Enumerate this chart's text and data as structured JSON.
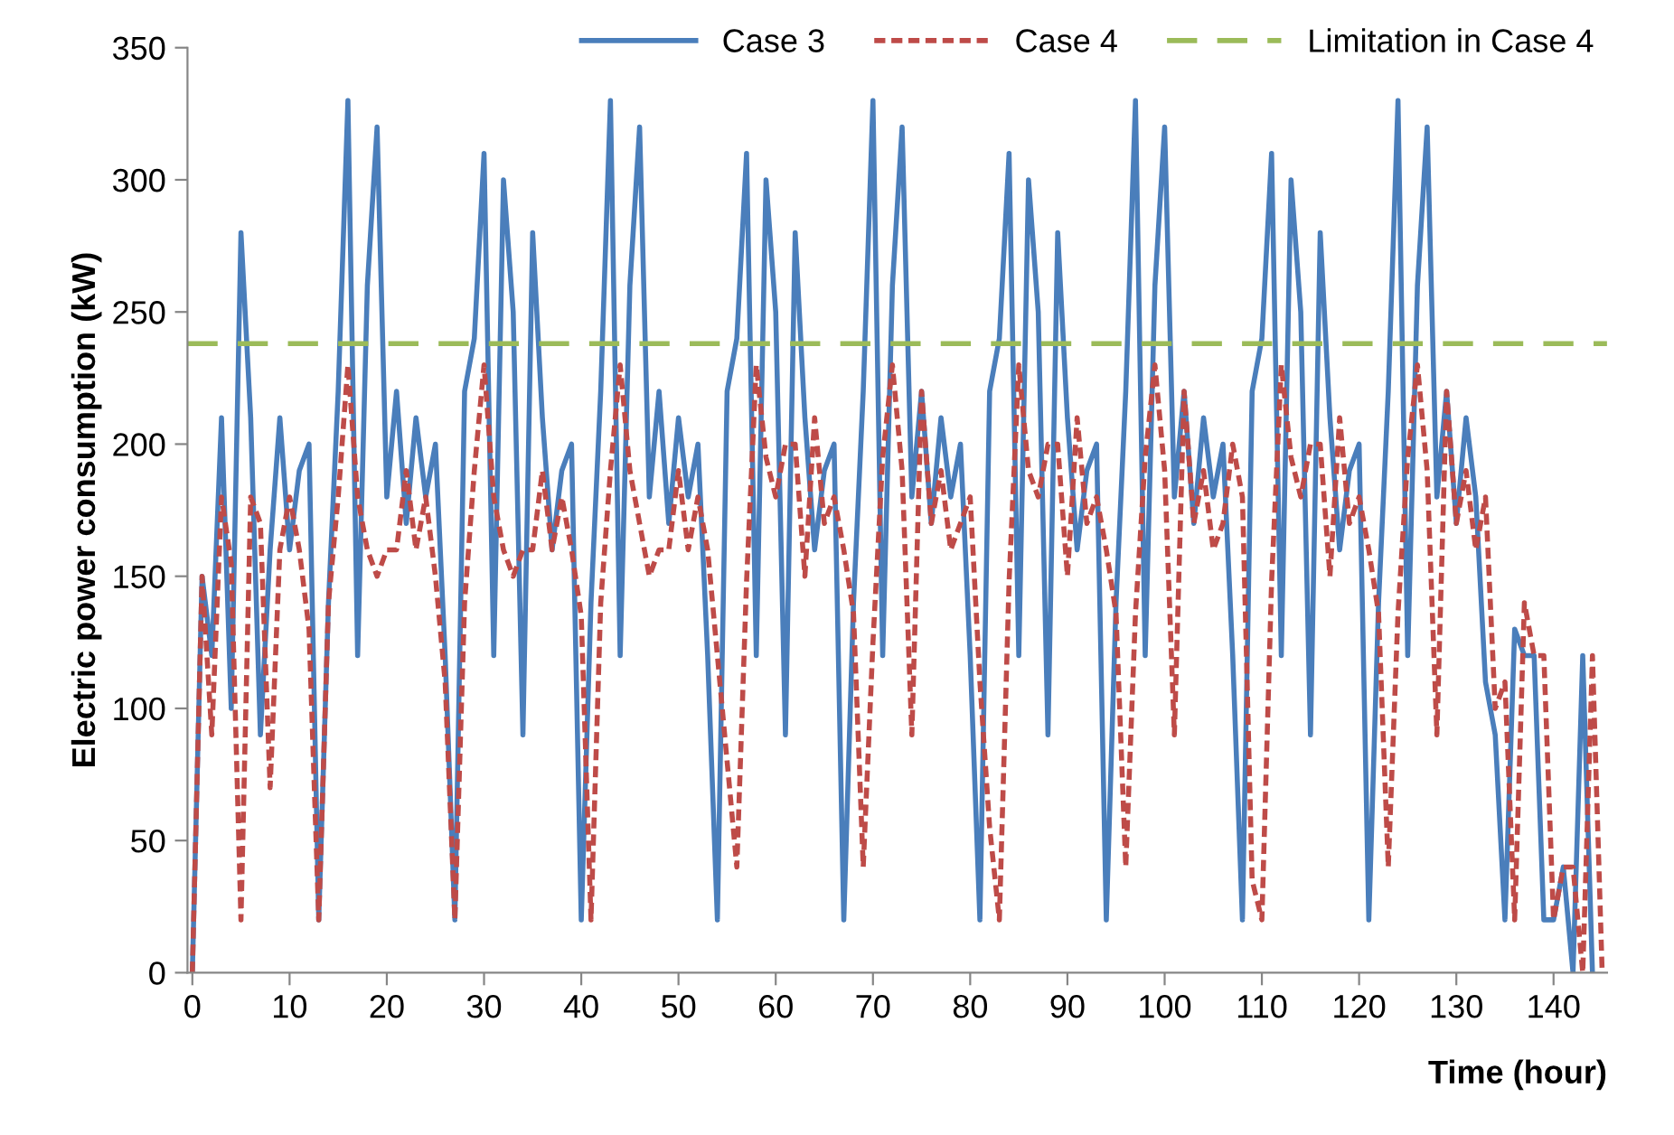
{
  "chart_data": {
    "type": "line",
    "xlabel": "Time (hour)",
    "ylabel": "Electric power consumption (kW)",
    "x": [
      0,
      1,
      2,
      3,
      4,
      5,
      6,
      7,
      8,
      9,
      10,
      11,
      12,
      13,
      14,
      15,
      16,
      17,
      18,
      19,
      20,
      21,
      22,
      23,
      24,
      25,
      26,
      27,
      28,
      29,
      30,
      31,
      32,
      33,
      34,
      35,
      36,
      37,
      38,
      39,
      40,
      41,
      42,
      43,
      44,
      45,
      46,
      47,
      48,
      49,
      50,
      51,
      52,
      53,
      54,
      55,
      56,
      57,
      58,
      59,
      60,
      61,
      62,
      63,
      64,
      65,
      66,
      67,
      68,
      69,
      70,
      71,
      72,
      73,
      74,
      75,
      76,
      77,
      78,
      79,
      80,
      81,
      82,
      83,
      84,
      85,
      86,
      87,
      88,
      89,
      90,
      91,
      92,
      93,
      94,
      95,
      96,
      97,
      98,
      99,
      100,
      101,
      102,
      103,
      104,
      105,
      106,
      107,
      108,
      109,
      110,
      111,
      112,
      113,
      114,
      115,
      116,
      117,
      118,
      119,
      120,
      121,
      122,
      123,
      124,
      125,
      126,
      127,
      128,
      129,
      130,
      131,
      132,
      133,
      134,
      135,
      136,
      137,
      138,
      139,
      140,
      141,
      142,
      143,
      144,
      145
    ],
    "series": [
      {
        "name": "Case 3",
        "color": "#4a7ebb",
        "line_style": "solid",
        "values": [
          0,
          150,
          120,
          210,
          100,
          280,
          210,
          90,
          160,
          210,
          160,
          190,
          200,
          20,
          140,
          220,
          330,
          120,
          260,
          320,
          180,
          220,
          170,
          210,
          180,
          200,
          120,
          20,
          220,
          240,
          310,
          120,
          300,
          250,
          90,
          280,
          210,
          160,
          190,
          200,
          20,
          140,
          220,
          330,
          120,
          260,
          320,
          180,
          220,
          170,
          210,
          180,
          200,
          120,
          20,
          220,
          240,
          310,
          120,
          300,
          250,
          90,
          280,
          210,
          160,
          190,
          200,
          20,
          140,
          220,
          330,
          120,
          260,
          320,
          180,
          220,
          170,
          210,
          180,
          200,
          120,
          20,
          220,
          240,
          310,
          120,
          300,
          250,
          90,
          280,
          210,
          160,
          190,
          200,
          20,
          140,
          220,
          330,
          120,
          260,
          320,
          180,
          220,
          170,
          210,
          180,
          200,
          120,
          20,
          220,
          240,
          310,
          120,
          300,
          250,
          90,
          280,
          210,
          160,
          190,
          200,
          20,
          140,
          220,
          330,
          120,
          260,
          320,
          180,
          220,
          170,
          210,
          180,
          110,
          90,
          20,
          130,
          120,
          120,
          20,
          20,
          40,
          0,
          120,
          0,
          null
        ]
      },
      {
        "name": "Case 4",
        "color": "#be4b48",
        "line_style": "dashed",
        "values": [
          0,
          150,
          90,
          180,
          155,
          20,
          180,
          170,
          70,
          160,
          180,
          160,
          130,
          20,
          140,
          180,
          230,
          180,
          160,
          150,
          160,
          160,
          190,
          160,
          180,
          150,
          110,
          20,
          140,
          190,
          230,
          180,
          160,
          150,
          160,
          160,
          190,
          160,
          180,
          160,
          135,
          20,
          140,
          190,
          230,
          190,
          170,
          150,
          160,
          160,
          190,
          160,
          180,
          160,
          120,
          80,
          40,
          148,
          230,
          195,
          180,
          200,
          200,
          150,
          210,
          170,
          180,
          160,
          136,
          40,
          125,
          195,
          230,
          190,
          90,
          220,
          170,
          190,
          160,
          170,
          180,
          110,
          55,
          20,
          148,
          230,
          190,
          180,
          200,
          200,
          150,
          210,
          170,
          180,
          160,
          136,
          40,
          136,
          195,
          230,
          190,
          90,
          220,
          170,
          190,
          160,
          170,
          200,
          180,
          35,
          20,
          148,
          230,
          195,
          180,
          200,
          200,
          150,
          210,
          170,
          180,
          160,
          136,
          40,
          136,
          195,
          230,
          190,
          90,
          220,
          170,
          190,
          160,
          180,
          100,
          110,
          20,
          140,
          120,
          120,
          20,
          40,
          40,
          0,
          120,
          0
        ]
      }
    ],
    "ref_lines": [
      {
        "axis": "y",
        "value": 238,
        "label": "Limitation in Case 4",
        "color": "#9bbb59",
        "line_style": "dashed"
      }
    ],
    "xlim": [
      -0.5,
      145.5
    ],
    "xticks": [
      0,
      10,
      20,
      30,
      40,
      50,
      60,
      70,
      80,
      90,
      100,
      110,
      120,
      130,
      140
    ],
    "ylim": [
      0,
      350
    ],
    "yticks": [
      0,
      50,
      100,
      150,
      200,
      250,
      300,
      350
    ],
    "grid": false,
    "legend": "top right"
  }
}
